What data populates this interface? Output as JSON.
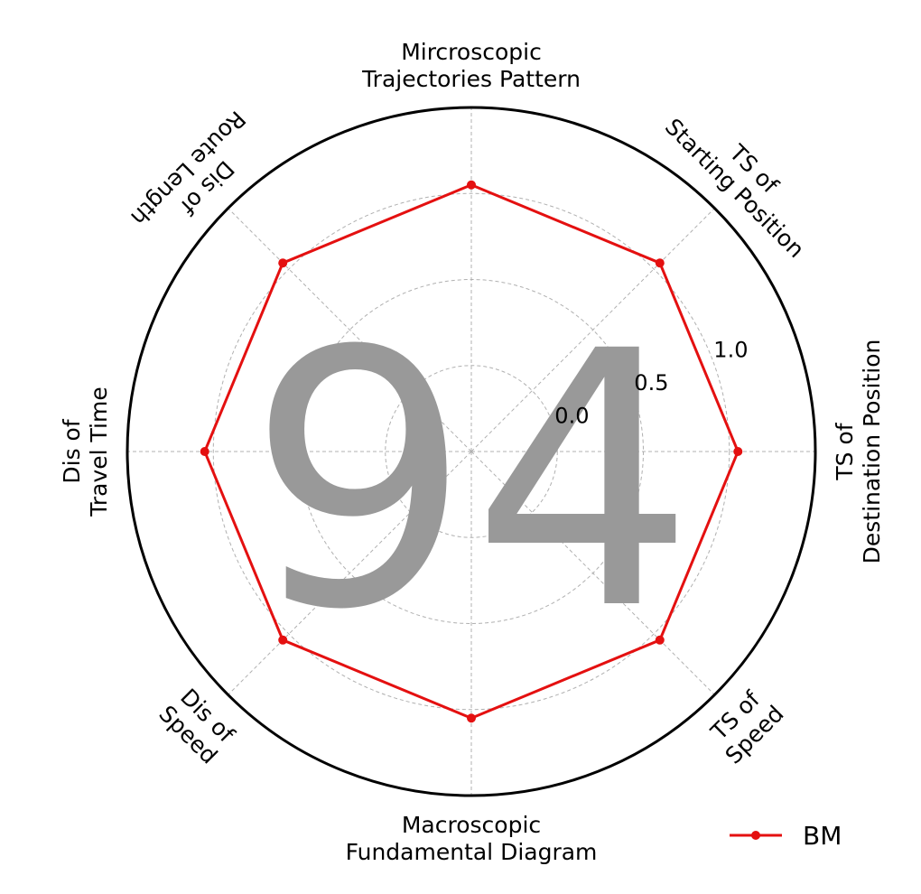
{
  "chart_data": {
    "type": "radar",
    "categories": [
      "Mircroscopic\nTrajectories Pattern",
      "TS of\nStarting Position",
      "TS of\nDestination Position",
      "TS of\nSpeed",
      "Macroscopic\nFundamental Diagram",
      "Dis of\nSpeed",
      "Dis of\nTravel Time",
      "Dis of\nRoute Length"
    ],
    "series": [
      {
        "name": "BM",
        "values": [
          1.05,
          1.05,
          1.05,
          1.05,
          1.05,
          1.05,
          1.05,
          1.05
        ]
      }
    ],
    "rlim": [
      -0.5,
      1.5
    ],
    "rticks": [
      0.0,
      0.5,
      1.0
    ],
    "rtick_labels": [
      "0.0",
      "0.5",
      "1.0"
    ],
    "grid": true,
    "legend_position": "bottom-right",
    "watermark": "94",
    "colors": {
      "series": "#e41010",
      "grid": "#b0b0b0",
      "frame": "#000000",
      "watermark": "#999999"
    }
  }
}
